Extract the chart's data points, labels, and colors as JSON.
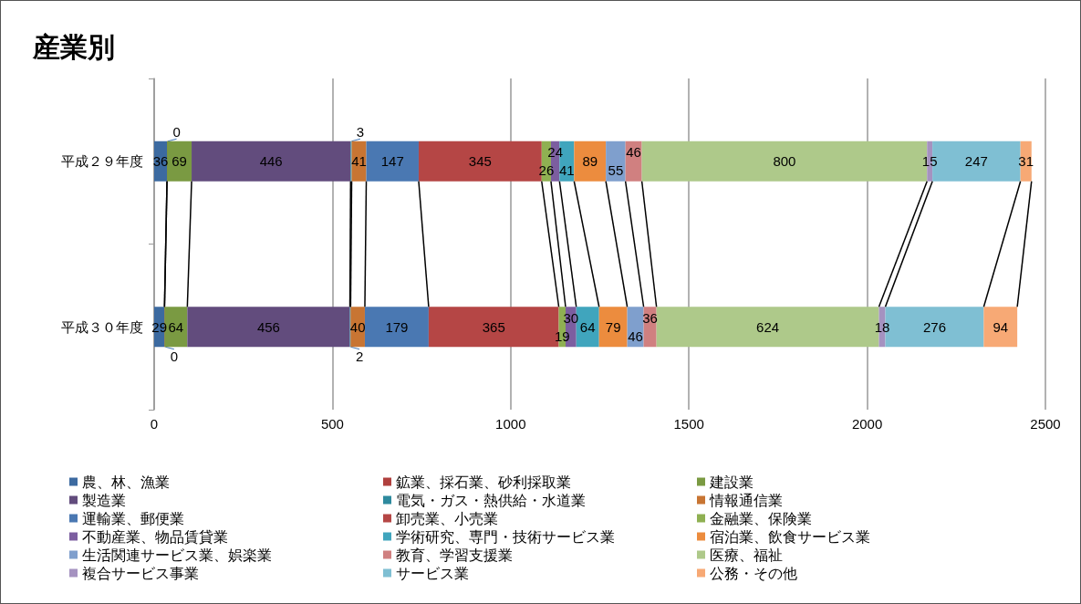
{
  "chart_data": {
    "type": "bar",
    "orientation": "horizontal",
    "stacked": true,
    "title": "産業別",
    "categories": [
      "平成２９年度",
      "平成３０年度"
    ],
    "series": [
      {
        "name": "農、林、漁業",
        "color": "#3c6aa0",
        "values": [
          36,
          29
        ]
      },
      {
        "name": "鉱業、採石業、砂利採取業",
        "color": "#b0403e",
        "values": [
          0,
          0
        ]
      },
      {
        "name": "建設業",
        "color": "#7a9a42",
        "values": [
          69,
          64
        ]
      },
      {
        "name": "製造業",
        "color": "#624c7d",
        "values": [
          446,
          456
        ]
      },
      {
        "name": "電気・ガス・熱供給・水道業",
        "color": "#2e8a9e",
        "values": [
          3,
          2
        ]
      },
      {
        "name": "情報通信業",
        "color": "#c87533",
        "values": [
          41,
          40
        ]
      },
      {
        "name": "運輸業、郵便業",
        "color": "#4a78b2",
        "values": [
          147,
          179
        ]
      },
      {
        "name": "卸売業、小売業",
        "color": "#b54645",
        "values": [
          345,
          365
        ]
      },
      {
        "name": "金融業、保険業",
        "color": "#8fb052",
        "values": [
          26,
          19
        ]
      },
      {
        "name": "不動産業、物品賃貸業",
        "color": "#7c5ea0",
        "values": [
          24,
          30
        ]
      },
      {
        "name": "学術研究、専門・技術サービス業",
        "color": "#40a5bd",
        "values": [
          41,
          64
        ]
      },
      {
        "name": "宿泊業、飲食サービス業",
        "color": "#ec8c3e",
        "values": [
          89,
          79
        ]
      },
      {
        "name": "生活関連サービス業、娯楽業",
        "color": "#7f9fcd",
        "values": [
          55,
          46
        ]
      },
      {
        "name": "教育、学習支援業",
        "color": "#d08080",
        "values": [
          46,
          36
        ]
      },
      {
        "name": "医療、福祉",
        "color": "#aec98a",
        "values": [
          800,
          624
        ]
      },
      {
        "name": "複合サービス事業",
        "color": "#a592c0",
        "values": [
          15,
          18
        ]
      },
      {
        "name": "サービス業",
        "color": "#7fbfd3",
        "values": [
          247,
          276
        ]
      },
      {
        "name": "公務・その他",
        "color": "#f7a975",
        "values": [
          31,
          94
        ]
      }
    ],
    "xlim": [
      0,
      2500
    ],
    "xticks": [
      0,
      500,
      1000,
      1500,
      2000,
      2500
    ],
    "grid": "x",
    "legend": "bottom",
    "data_labels": true
  }
}
